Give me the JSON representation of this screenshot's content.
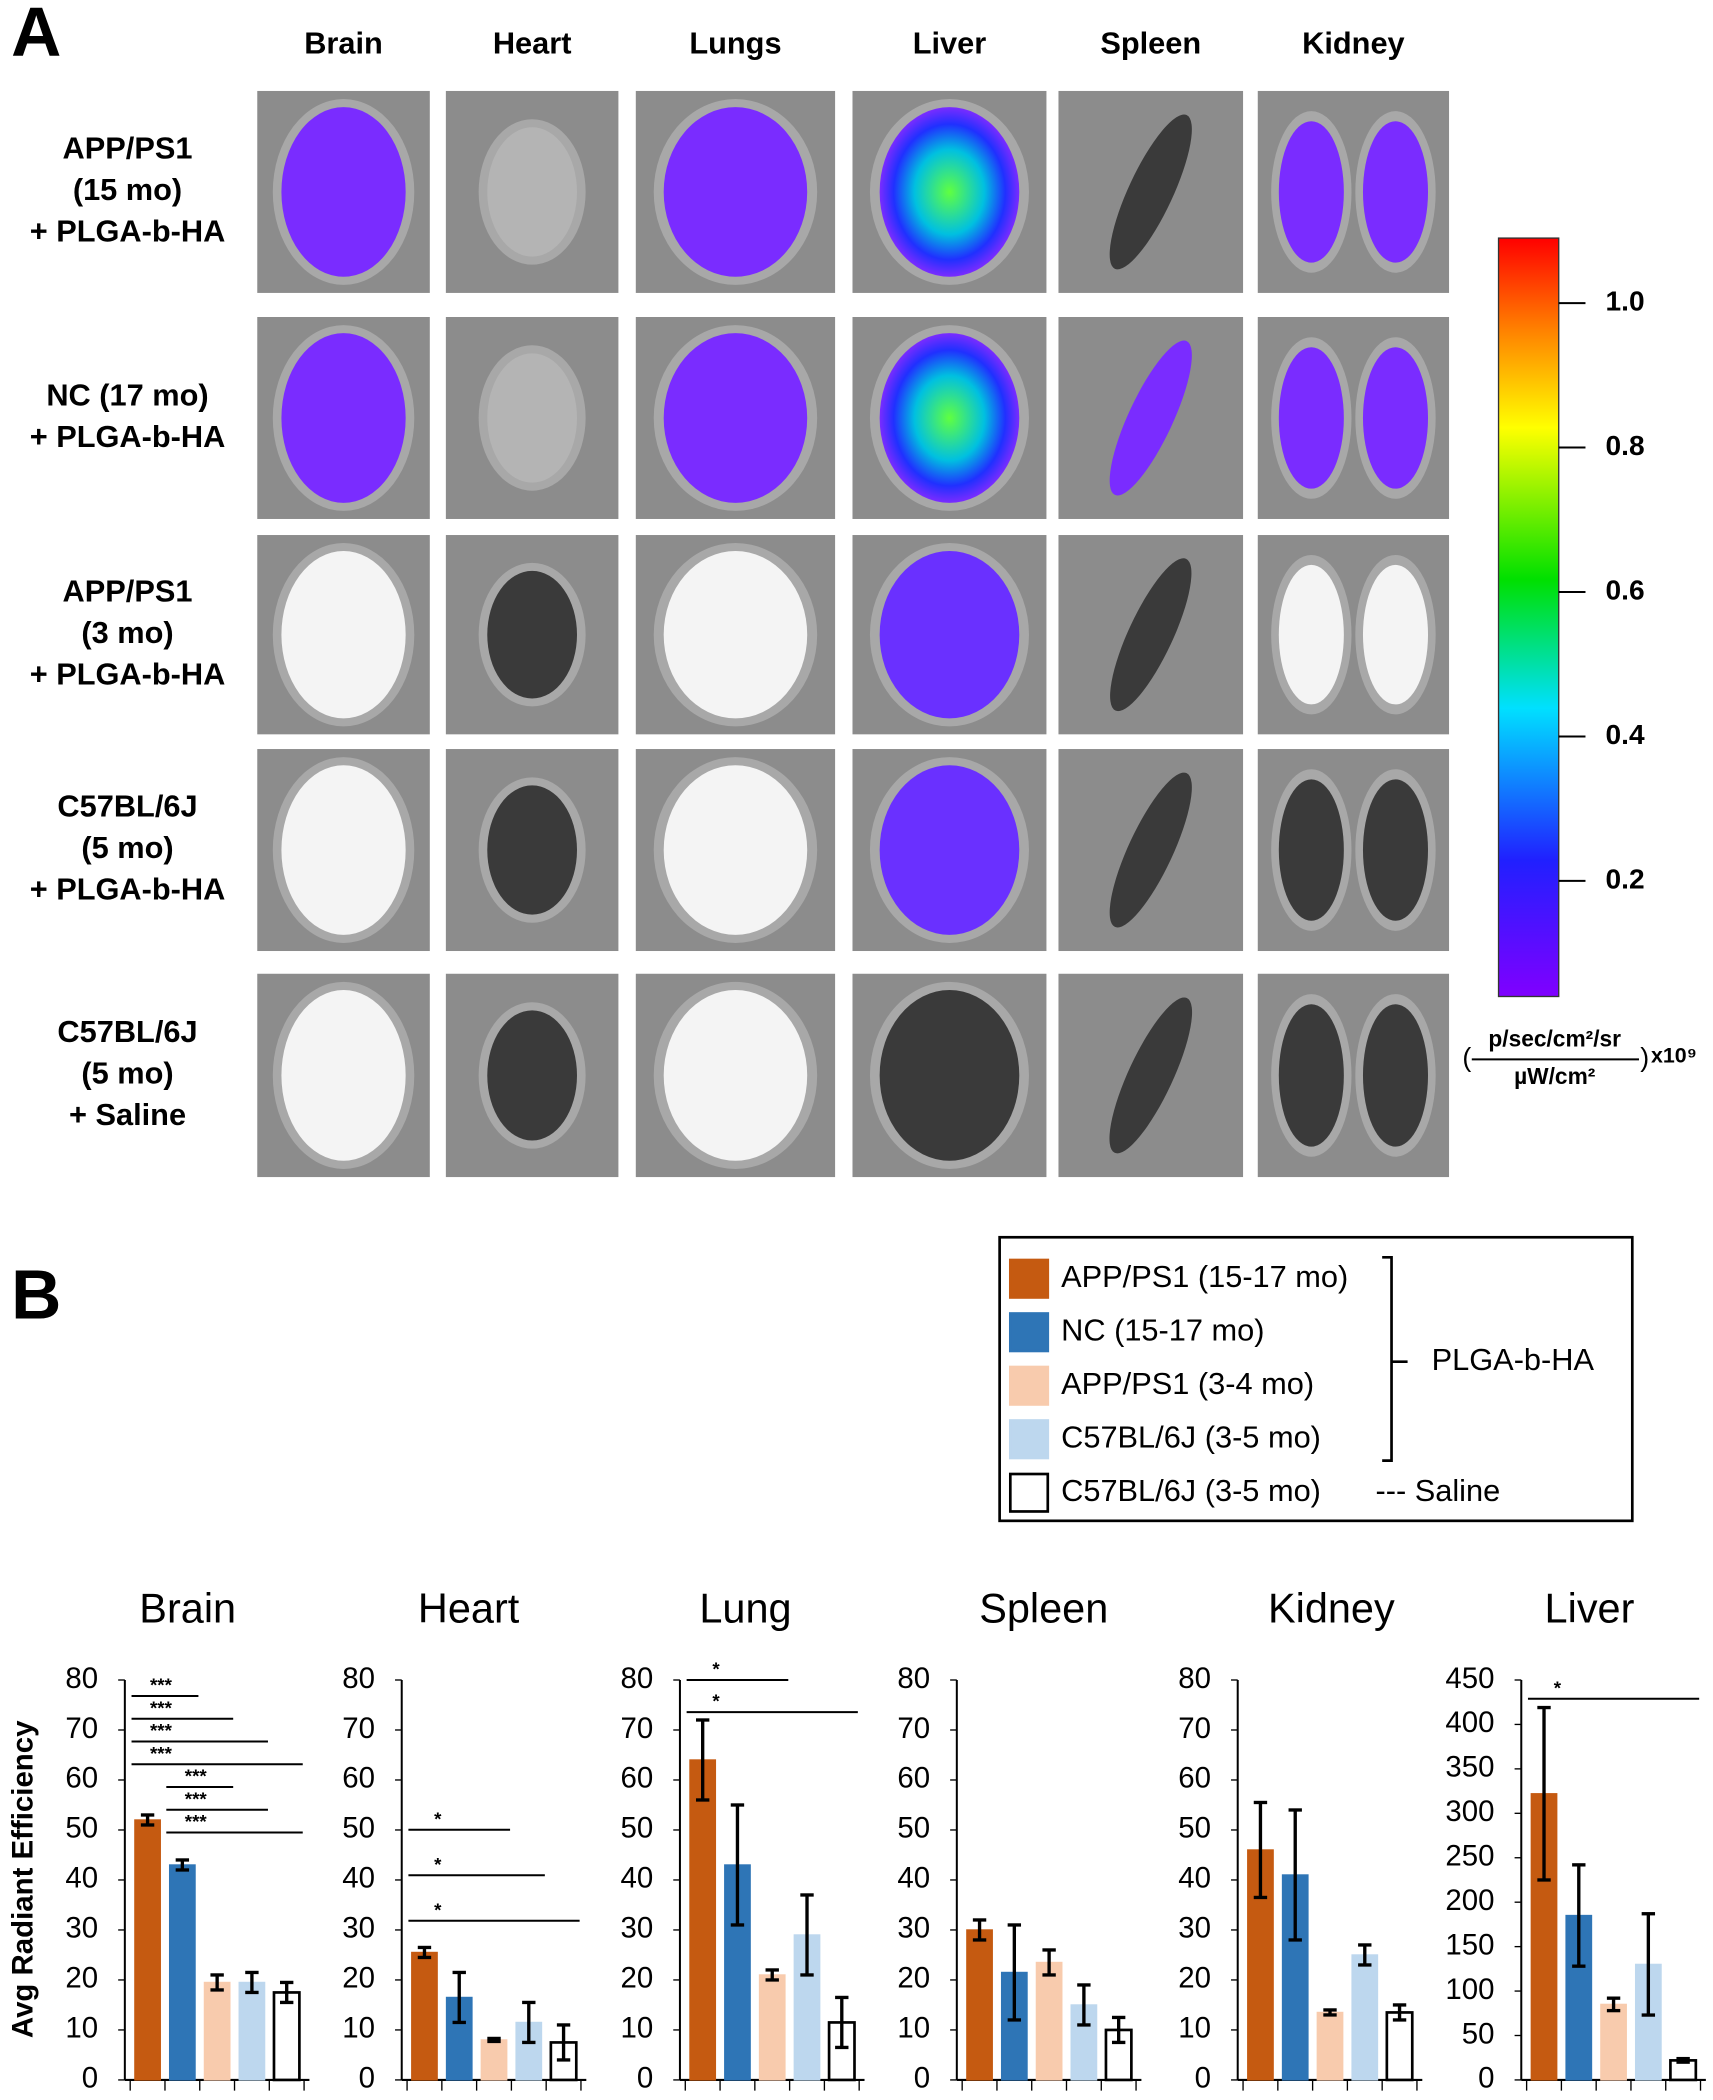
{
  "panel_a": {
    "label": "A",
    "columns": [
      "Brain",
      "Heart",
      "Lungs",
      "Liver",
      "Spleen",
      "Kidney"
    ],
    "rows": [
      [
        "APP/PS1",
        "(15 mo)",
        "+ PLGA-b-HA"
      ],
      [
        "NC (17 mo)",
        "+ PLGA-b-HA"
      ],
      [
        "APP/PS1",
        "(3 mo)",
        "+ PLGA-b-HA"
      ],
      [
        "C57BL/6J",
        "(5 mo)",
        "+ PLGA-b-HA"
      ],
      [
        "C57BL/6J",
        "(5 mo)",
        "+ Saline"
      ]
    ],
    "colorbar": {
      "range": [
        0.04,
        1.09
      ],
      "ticks": [
        0.2,
        0.4,
        0.6,
        0.8,
        {
          "value": 1,
          "label": "1.0"
        }
      ],
      "unit_numerator": "p/sec/cm²/sr",
      "unit_denominator": "µW/cm²",
      "unit_scale": "x10⁹"
    }
  },
  "panel_b": {
    "label": "B",
    "legend": {
      "entries": [
        {
          "name": "APP/PS1 (15-17 mo)",
          "color": "#c55a11"
        },
        {
          "name": "NC (15-17 mo)",
          "color": "#2e75b6"
        },
        {
          "name": "APP/PS1 (3-4 mo)",
          "color": "#f8cbad"
        },
        {
          "name": "C57BL/6J (3-5 mo)",
          "color": "#bdd7ee"
        },
        {
          "name": "C57BL/6J (3-5 mo)",
          "color": "#ffffff"
        }
      ],
      "bracket_label": "PLGA-b-HA",
      "saline_label": "--- Saline"
    }
  },
  "chart_data": [
    {
      "type": "bar",
      "title": "Brain",
      "y_label": "Avg Radiant Efficiency",
      "values": [
        52,
        43,
        19.5,
        19.5,
        17.5
      ],
      "errors": [
        1,
        1,
        1.5,
        2,
        2
      ],
      "ylim": [
        0,
        80
      ],
      "yticks": [
        0,
        10,
        20,
        30,
        40,
        50,
        60,
        70,
        80
      ],
      "annotations": [
        {
          "text": "***",
          "pair": [
            0,
            1
          ]
        },
        {
          "text": "***",
          "pair": [
            0,
            2
          ]
        },
        {
          "text": "***",
          "pair": [
            0,
            3
          ]
        },
        {
          "text": "***",
          "pair": [
            0,
            4
          ]
        },
        {
          "text": "***",
          "pair": [
            1,
            2
          ]
        },
        {
          "text": "***",
          "pair": [
            1,
            3
          ]
        },
        {
          "text": "***",
          "pair": [
            1,
            4
          ]
        }
      ]
    },
    {
      "type": "bar",
      "title": "Heart",
      "values": [
        25.5,
        16.5,
        8,
        11.5,
        7.5
      ],
      "errors": [
        1,
        5,
        0.3,
        4,
        3.5
      ],
      "ylim": [
        0,
        80
      ],
      "yticks": [
        0,
        10,
        20,
        30,
        40,
        50,
        60,
        70,
        80
      ],
      "annotations": [
        {
          "text": "*",
          "pair": [
            0,
            2
          ]
        },
        {
          "text": "*",
          "pair": [
            0,
            3
          ]
        },
        {
          "text": "*",
          "pair": [
            0,
            4
          ]
        }
      ]
    },
    {
      "type": "bar",
      "title": "Lung",
      "values": [
        64,
        43,
        21,
        29,
        11.5
      ],
      "errors": [
        8,
        12,
        1,
        8,
        5
      ],
      "ylim": [
        0,
        80
      ],
      "yticks": [
        0,
        10,
        20,
        30,
        40,
        50,
        60,
        70,
        80
      ],
      "annotations": [
        {
          "text": "*",
          "pair": [
            0,
            2
          ]
        },
        {
          "text": "*",
          "pair": [
            0,
            4
          ]
        }
      ]
    },
    {
      "type": "bar",
      "title": "Spleen",
      "values": [
        30,
        21.5,
        23.5,
        15,
        10
      ],
      "errors": [
        2,
        9.5,
        2.5,
        4,
        2.5
      ],
      "ylim": [
        0,
        80
      ],
      "yticks": [
        0,
        10,
        20,
        30,
        40,
        50,
        60,
        70,
        80
      ]
    },
    {
      "type": "bar",
      "title": "Kidney",
      "values": [
        46,
        41,
        13.5,
        25,
        13.5
      ],
      "errors": [
        9.5,
        13,
        0.5,
        2,
        1.5
      ],
      "ylim": [
        0,
        80
      ],
      "yticks": [
        0,
        10,
        20,
        30,
        40,
        50,
        60,
        70,
        80
      ]
    },
    {
      "type": "bar",
      "title": "Liver",
      "values": [
        322,
        185,
        85,
        130,
        22
      ],
      "errors": [
        97,
        57,
        7,
        57,
        2
      ],
      "ylim": [
        0,
        450
      ],
      "yticks": [
        0,
        50,
        100,
        150,
        200,
        250,
        300,
        350,
        400,
        450
      ],
      "annotations": [
        {
          "text": "*",
          "pair": [
            0,
            4
          ]
        }
      ]
    }
  ]
}
